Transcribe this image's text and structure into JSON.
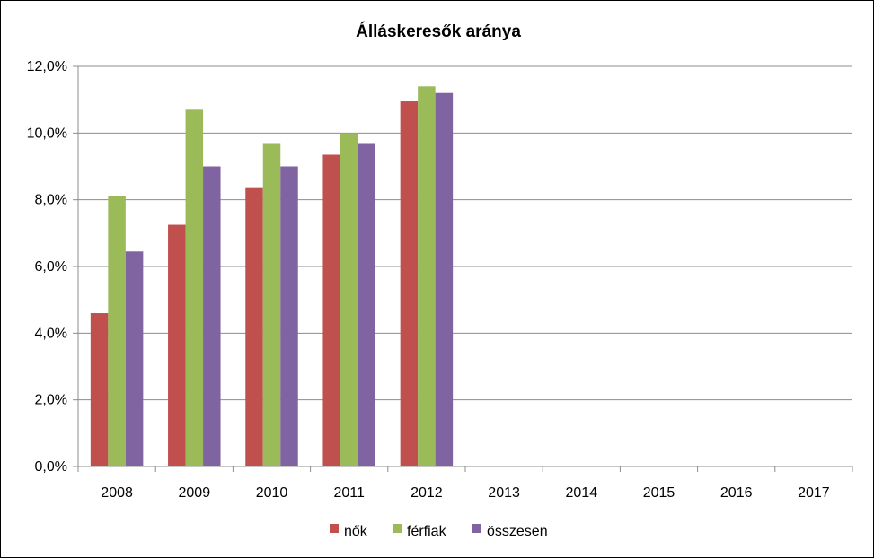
{
  "chart_data": {
    "type": "bar",
    "title": "Álláskeresők aránya",
    "xlabel": "",
    "ylabel": "",
    "categories": [
      "2008",
      "2009",
      "2010",
      "2011",
      "2012",
      "2013",
      "2014",
      "2015",
      "2016",
      "2017"
    ],
    "series": [
      {
        "name": "nők",
        "color": "#C0504D",
        "values": [
          4.6,
          7.25,
          8.35,
          9.35,
          10.95,
          null,
          null,
          null,
          null,
          null
        ]
      },
      {
        "name": "férfiak",
        "color": "#9BBB59",
        "values": [
          8.1,
          10.7,
          9.7,
          10.0,
          11.4,
          null,
          null,
          null,
          null,
          null
        ]
      },
      {
        "name": "összesen",
        "color": "#8064A2",
        "values": [
          6.45,
          9.0,
          9.0,
          9.7,
          11.2,
          null,
          null,
          null,
          null,
          null
        ]
      }
    ],
    "ylim": [
      0,
      12
    ],
    "yticks": [
      "0,0%",
      "2,0%",
      "4,0%",
      "6,0%",
      "8,0%",
      "10,0%",
      "12,0%"
    ],
    "ytick_values": [
      0,
      2,
      4,
      6,
      8,
      10,
      12
    ],
    "grid": true,
    "legend_position": "bottom"
  }
}
